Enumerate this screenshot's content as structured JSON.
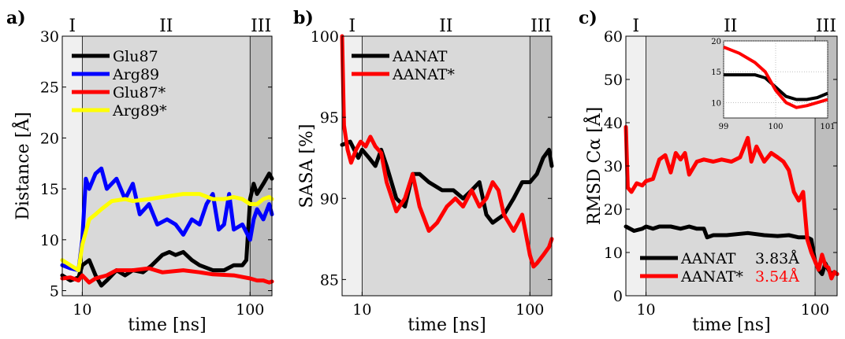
{
  "chart_data": [
    {
      "type": "line",
      "panel_label": "a)",
      "xlabel": "time [ns]",
      "ylabel": "Distance [Å]",
      "x_scale": "log",
      "xlim": [
        7.6,
        135
      ],
      "ylim": [
        4.5,
        30
      ],
      "x_ticks": [
        10,
        100
      ],
      "x_tick_labels": [
        "10",
        "100"
      ],
      "y_ticks": [
        5,
        10,
        15,
        20,
        25,
        30
      ],
      "y_tick_labels": [
        "5",
        "10",
        "15",
        "20",
        "25",
        "30"
      ],
      "grid": false,
      "legend": "top-left",
      "regions": [
        {
          "label": "I",
          "from": 7.6,
          "to": 10,
          "shade": "#f0f0f0"
        },
        {
          "label": "II",
          "from": 10,
          "to": 100,
          "shade": "#d9d9d9"
        },
        {
          "label": "III",
          "from": 100,
          "to": 135,
          "shade": "#bdbdbd"
        }
      ],
      "series": [
        {
          "name": "Glu87",
          "color": "#000000",
          "x": [
            7.6,
            8.5,
            9.5,
            10,
            11,
            12,
            13,
            14,
            16,
            18,
            20,
            23,
            26,
            30,
            33,
            36,
            40,
            45,
            50,
            60,
            70,
            80,
            90,
            95,
            100,
            105,
            110,
            120,
            130,
            135
          ],
          "y": [
            6.5,
            6.0,
            6.3,
            7.5,
            8.0,
            6.5,
            5.5,
            6.0,
            7.0,
            6.5,
            7.0,
            6.8,
            7.5,
            8.5,
            8.8,
            8.5,
            8.8,
            8.0,
            7.5,
            7.0,
            7.0,
            7.5,
            7.5,
            8.0,
            14.0,
            15.5,
            14.5,
            15.5,
            16.5,
            16.0
          ]
        },
        {
          "name": "Arg89",
          "color": "#0000ff",
          "x": [
            7.6,
            8.5,
            9.5,
            10,
            10.5,
            11,
            12,
            13,
            14,
            16,
            18,
            20,
            22,
            25,
            28,
            32,
            36,
            40,
            45,
            50,
            55,
            60,
            65,
            70,
            75,
            80,
            90,
            100,
            105,
            110,
            120,
            130,
            135
          ],
          "y": [
            7.5,
            7.2,
            7.0,
            10.0,
            16.0,
            15.0,
            16.5,
            17.0,
            15.0,
            16.0,
            14.0,
            15.5,
            12.5,
            13.5,
            11.5,
            12.0,
            11.5,
            10.5,
            12.0,
            11.5,
            13.5,
            14.5,
            11.0,
            11.5,
            14.5,
            11.0,
            11.5,
            10.0,
            12.0,
            13.0,
            12.0,
            13.5,
            12.5
          ]
        },
        {
          "name": "Glu87*",
          "color": "#ff0000",
          "x": [
            7.6,
            8.5,
            9.5,
            10,
            11,
            12,
            14,
            16,
            20,
            25,
            30,
            40,
            50,
            60,
            80,
            100,
            110,
            120,
            130,
            135
          ],
          "y": [
            6.2,
            6.3,
            6.0,
            6.5,
            5.8,
            6.2,
            6.5,
            7.0,
            7.0,
            7.2,
            6.8,
            7.0,
            6.8,
            6.6,
            6.5,
            6.2,
            6.0,
            6.0,
            5.8,
            5.9
          ]
        },
        {
          "name": "Arg89*",
          "color": "#ffff00",
          "x": [
            7.6,
            8.5,
            9.5,
            10,
            11,
            12,
            13,
            15,
            18,
            20,
            25,
            30,
            40,
            50,
            60,
            70,
            80,
            90,
            100,
            110,
            120,
            130,
            135
          ],
          "y": [
            8.0,
            7.5,
            7.0,
            9.5,
            12.0,
            12.5,
            13.0,
            13.8,
            14.0,
            13.8,
            14.0,
            14.2,
            14.5,
            14.5,
            14.0,
            14.0,
            14.2,
            14.0,
            13.5,
            13.5,
            14.0,
            14.2,
            14.0
          ]
        }
      ]
    },
    {
      "type": "line",
      "panel_label": "b)",
      "xlabel": "time [ns]",
      "ylabel": "SASA [%]",
      "x_scale": "log",
      "xlim": [
        7.6,
        135
      ],
      "ylim": [
        84,
        100
      ],
      "x_ticks": [
        10,
        100
      ],
      "x_tick_labels": [
        "10",
        "100"
      ],
      "y_ticks": [
        85,
        90,
        95,
        100
      ],
      "y_tick_labels": [
        "85",
        "90",
        "95",
        "100"
      ],
      "grid": false,
      "legend": "top-left",
      "regions": [
        {
          "label": "I",
          "from": 7.6,
          "to": 10,
          "shade": "#f0f0f0"
        },
        {
          "label": "II",
          "from": 10,
          "to": 100,
          "shade": "#d9d9d9"
        },
        {
          "label": "III",
          "from": 100,
          "to": 135,
          "shade": "#bdbdbd"
        }
      ],
      "series": [
        {
          "name": "AANAT",
          "color": "#000000",
          "x": [
            7.6,
            8.5,
            9.5,
            10,
            11,
            12,
            13,
            14,
            16,
            18,
            20,
            22,
            25,
            30,
            35,
            40,
            45,
            50,
            55,
            60,
            70,
            80,
            90,
            100,
            110,
            120,
            130,
            135
          ],
          "y": [
            93.3,
            93.5,
            92.5,
            93.0,
            92.5,
            92.0,
            93.0,
            92.0,
            90.0,
            89.5,
            91.5,
            91.5,
            91.0,
            90.5,
            90.5,
            90.0,
            90.5,
            91.0,
            89.0,
            88.5,
            89.0,
            90.0,
            91.0,
            91.0,
            91.5,
            92.5,
            93.0,
            92.0
          ]
        },
        {
          "name": "AANAT*",
          "color": "#ff0000",
          "x": [
            7.6,
            7.8,
            8.2,
            8.6,
            9.2,
            9.8,
            10.5,
            11.2,
            12,
            13,
            14,
            16,
            18,
            20,
            22,
            25,
            28,
            32,
            36,
            40,
            45,
            50,
            55,
            60,
            65,
            70,
            80,
            90,
            100,
            105,
            110,
            120,
            130,
            135
          ],
          "y": [
            100.0,
            94.5,
            93.0,
            92.2,
            93.0,
            93.5,
            93.2,
            93.8,
            93.2,
            92.8,
            91.0,
            89.2,
            90.0,
            91.5,
            89.5,
            88.0,
            88.5,
            89.5,
            90.0,
            89.5,
            90.5,
            89.5,
            90.0,
            91.0,
            90.5,
            89.0,
            88.0,
            89.0,
            86.5,
            85.8,
            86.0,
            86.5,
            87.0,
            87.5
          ]
        }
      ]
    },
    {
      "type": "line",
      "panel_label": "c)",
      "xlabel": "time [ns]",
      "ylabel": "RMSD Cα [Å]",
      "x_scale": "log",
      "xlim": [
        7.6,
        135
      ],
      "ylim": [
        0,
        60
      ],
      "x_ticks": [
        10,
        100
      ],
      "x_tick_labels": [
        "10",
        "100"
      ],
      "y_ticks": [
        0,
        10,
        20,
        30,
        40,
        50,
        60
      ],
      "y_tick_labels": [
        "0",
        "10",
        "20",
        "30",
        "40",
        "50",
        "60"
      ],
      "grid": false,
      "legend": "bottom-left",
      "regions": [
        {
          "label": "I",
          "from": 7.6,
          "to": 10,
          "shade": "#f0f0f0"
        },
        {
          "label": "II",
          "from": 10,
          "to": 100,
          "shade": "#d9d9d9"
        },
        {
          "label": "III",
          "from": 100,
          "to": 135,
          "shade": "#bdbdbd"
        }
      ],
      "annotations": [
        {
          "text": "3.83Å",
          "color": "#000000"
        },
        {
          "text": "3.54Å",
          "color": "#ff0000"
        }
      ],
      "series": [
        {
          "name": "AANAT",
          "color": "#000000",
          "x": [
            7.6,
            8.5,
            9.5,
            10,
            11,
            12,
            14,
            16,
            18,
            20,
            22,
            23,
            25,
            30,
            40,
            50,
            60,
            70,
            80,
            90,
            95,
            100,
            105,
            110,
            115,
            120,
            125,
            130,
            135
          ],
          "y": [
            16.0,
            15.0,
            15.5,
            16.0,
            15.5,
            16.0,
            16.0,
            15.5,
            16.0,
            15.5,
            15.5,
            13.5,
            14.0,
            14.0,
            14.5,
            14.0,
            13.8,
            14.0,
            13.5,
            13.5,
            13.0,
            8.0,
            6.0,
            5.0,
            7.5,
            6.0,
            5.0,
            5.5,
            5.0
          ]
        },
        {
          "name": "AANAT*",
          "color": "#ff0000",
          "x": [
            7.6,
            7.8,
            8.2,
            8.8,
            9.5,
            10,
            11,
            12,
            13,
            14,
            15,
            16,
            17,
            18,
            20,
            22,
            25,
            28,
            32,
            36,
            40,
            42,
            45,
            50,
            55,
            60,
            65,
            70,
            75,
            80,
            85,
            90,
            95,
            100,
            105,
            110,
            115,
            120,
            125,
            130,
            135
          ],
          "y": [
            39.0,
            25.0,
            24.0,
            26.0,
            25.5,
            26.5,
            27.0,
            31.5,
            32.5,
            28.5,
            33.0,
            31.5,
            33.0,
            28.0,
            31.0,
            31.5,
            31.0,
            31.5,
            31.0,
            32.0,
            36.5,
            31.0,
            34.5,
            31.0,
            33.0,
            32.0,
            31.0,
            29.0,
            24.0,
            22.0,
            24.0,
            13.0,
            10.0,
            8.0,
            6.0,
            9.5,
            7.0,
            6.5,
            4.0,
            5.5,
            5.0
          ]
        }
      ],
      "inset": {
        "xlim": [
          99,
          101
        ],
        "ylim": [
          7.5,
          20
        ],
        "x_ticks": [
          99,
          100,
          101
        ],
        "x_tick_labels": [
          "99",
          "100",
          "101"
        ],
        "y_ticks": [
          10,
          15,
          20
        ],
        "y_tick_labels": [
          "10",
          "15",
          "20"
        ],
        "grid": true,
        "series": [
          {
            "name": "AANAT",
            "color": "#000000",
            "x": [
              99,
              99.3,
              99.6,
              99.8,
              100,
              100.2,
              100.4,
              100.6,
              100.8,
              101
            ],
            "y": [
              14.5,
              14.5,
              14.5,
              14.0,
              12.5,
              11.0,
              10.5,
              10.5,
              10.8,
              11.5
            ]
          },
          {
            "name": "AANAT*",
            "color": "#ff0000",
            "x": [
              99,
              99.3,
              99.6,
              99.8,
              100,
              100.2,
              100.4,
              100.6,
              100.8,
              101
            ],
            "y": [
              19.0,
              18.0,
              16.5,
              15.0,
              12.0,
              10.0,
              9.2,
              9.5,
              10.0,
              10.5
            ]
          }
        ]
      }
    }
  ]
}
